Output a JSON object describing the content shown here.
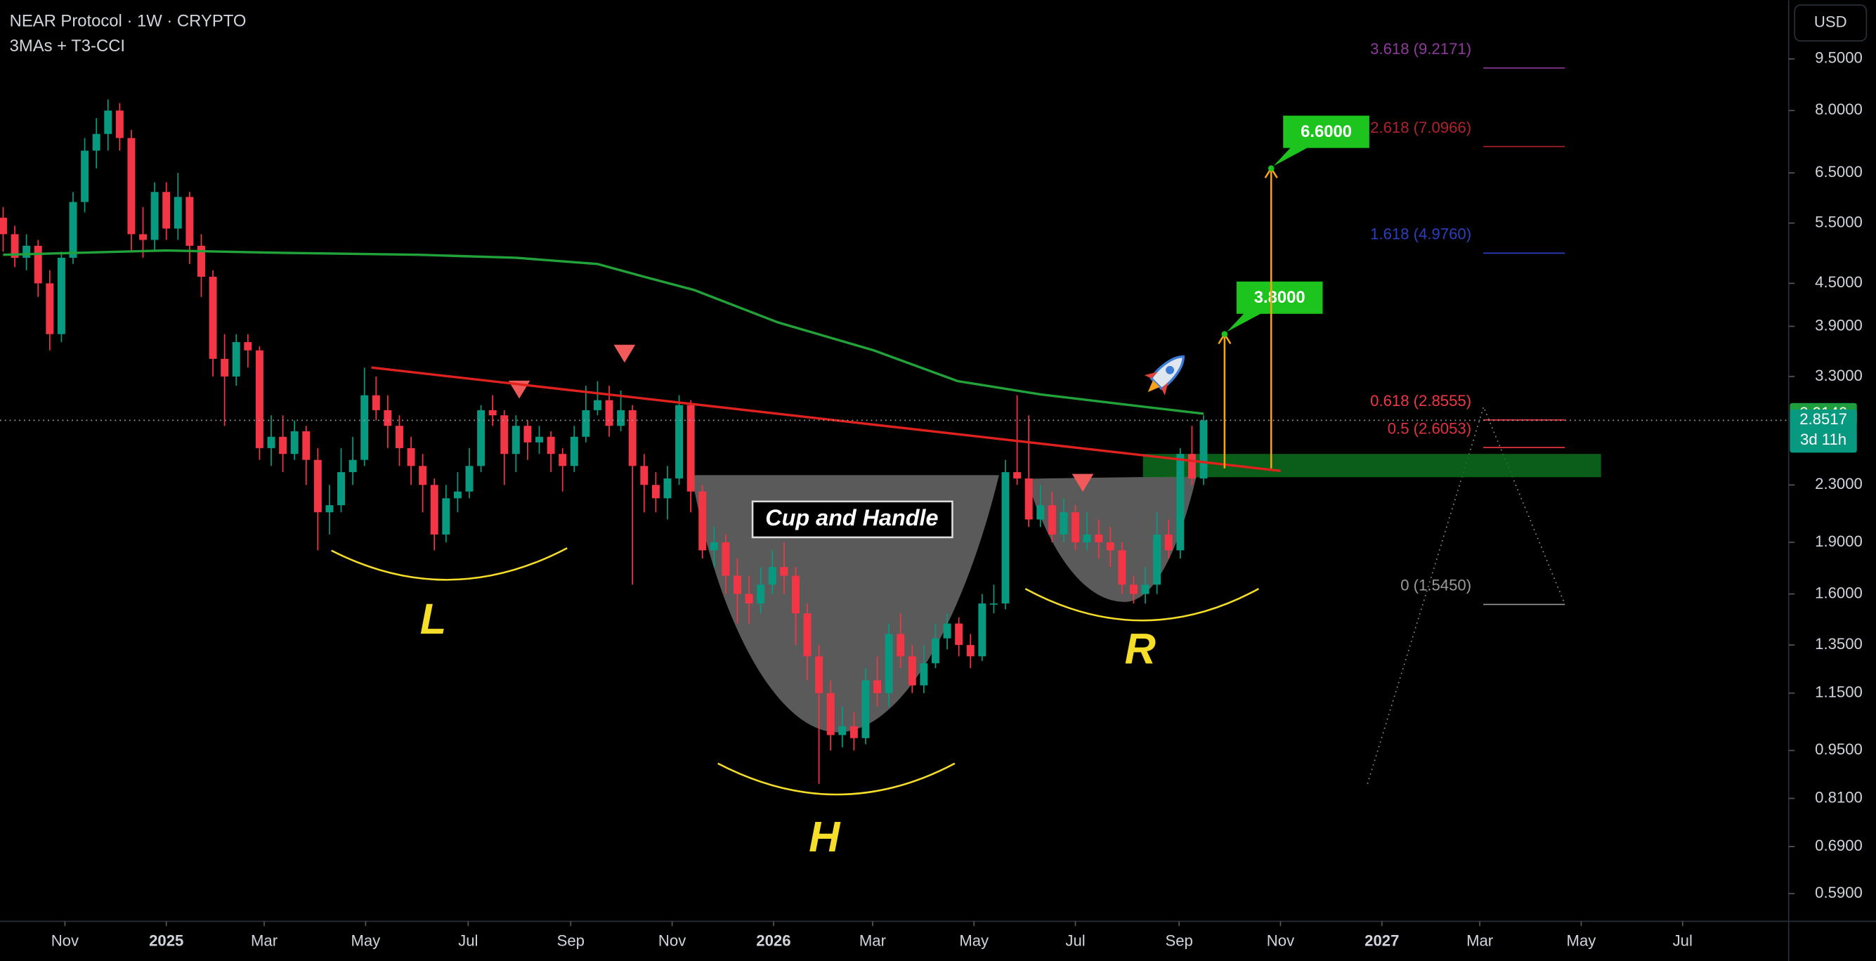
{
  "chart_data": {
    "type": "candlestick",
    "title": "NEAR Protocol · 1W · CRYPTO",
    "subtitle": "3MAs + T3-CCI",
    "currency": "USD",
    "countdown": "3d 11h",
    "log_scale": true,
    "grid": false,
    "up_color": "#089981",
    "down_color": "#f23645",
    "xlim": [
      -14.27,
      139.2
    ],
    "ylim": [
      0.538,
      11.55
    ],
    "xticks": [
      {
        "value": -8.7,
        "label": "Nov"
      },
      {
        "value": 0,
        "label": "2025"
      },
      {
        "value": 8.4,
        "label": "Mar"
      },
      {
        "value": 17.1,
        "label": "May"
      },
      {
        "value": 25.9,
        "label": "Jul"
      },
      {
        "value": 34.7,
        "label": "Sep"
      },
      {
        "value": 43.4,
        "label": "Nov"
      },
      {
        "value": 52.1,
        "label": "2026"
      },
      {
        "value": 60.6,
        "label": "Mar"
      },
      {
        "value": 69.3,
        "label": "May"
      },
      {
        "value": 78,
        "label": "Jul"
      },
      {
        "value": 86.9,
        "label": "Sep"
      },
      {
        "value": 95.6,
        "label": "Nov"
      },
      {
        "value": 104.3,
        "label": "2027"
      },
      {
        "value": 112.7,
        "label": "Mar"
      },
      {
        "value": 121.4,
        "label": "May"
      },
      {
        "value": 130.1,
        "label": "Jul"
      }
    ],
    "yticks": [
      {
        "value": 9.5,
        "label": "9.5000"
      },
      {
        "value": 8,
        "label": "8.0000"
      },
      {
        "value": 6.5,
        "label": "6.5000"
      },
      {
        "value": 5.5,
        "label": "5.5000"
      },
      {
        "value": 4.5,
        "label": "4.5000"
      },
      {
        "value": 3.9,
        "label": "3.9000"
      },
      {
        "value": 3.3,
        "label": "3.3000"
      },
      {
        "value": 2.3,
        "label": "2.3000"
      },
      {
        "value": 1.9,
        "label": "1.9000"
      },
      {
        "value": 1.6,
        "label": "1.6000"
      },
      {
        "value": 1.35,
        "label": "1.3500"
      },
      {
        "value": 1.15,
        "label": "1.1500"
      },
      {
        "value": 0.95,
        "label": "0.9500"
      },
      {
        "value": 0.81,
        "label": "0.8100"
      },
      {
        "value": 0.69,
        "label": "0.6900"
      },
      {
        "value": 0.59,
        "label": "0.5900"
      }
    ],
    "x": [
      -14,
      -13,
      -12,
      -11,
      -10,
      -9,
      -8,
      -7,
      -6,
      -5,
      -4,
      -3,
      -2,
      -1,
      0,
      1,
      2,
      3,
      4,
      5,
      6,
      7,
      8,
      9,
      10,
      11,
      12,
      13,
      14,
      15,
      16,
      17,
      18,
      19,
      20,
      21,
      22,
      23,
      24,
      25,
      26,
      27,
      28,
      29,
      30,
      31,
      32,
      33,
      34,
      35,
      36,
      37,
      38,
      39,
      40,
      41,
      42,
      43,
      44,
      45,
      46,
      47,
      48,
      49,
      50,
      51,
      52,
      53,
      54,
      55,
      56,
      57,
      58,
      59,
      60,
      61,
      62,
      63,
      64,
      65,
      66,
      67,
      68,
      69,
      70,
      71,
      72,
      73,
      74,
      75,
      76,
      77,
      78,
      79,
      80,
      81,
      82,
      83,
      84,
      85,
      86,
      87,
      88,
      89
    ],
    "open": [
      5.6,
      5.3,
      4.9,
      5.1,
      4.5,
      3.8,
      4.9,
      5.9,
      7.0,
      7.4,
      8.0,
      7.3,
      5.3,
      5.2,
      6.1,
      5.4,
      6.0,
      5.1,
      4.6,
      3.5,
      3.3,
      3.7,
      3.6,
      2.6,
      2.7,
      2.55,
      2.75,
      2.5,
      2.1,
      2.15,
      2.4,
      2.5,
      3.1,
      2.95,
      2.8,
      2.6,
      2.45,
      2.3,
      1.95,
      2.2,
      2.25,
      2.45,
      2.95,
      2.9,
      2.55,
      2.8,
      2.65,
      2.7,
      2.55,
      2.45,
      2.7,
      2.95,
      3.05,
      2.8,
      2.95,
      2.45,
      2.3,
      2.2,
      2.35,
      3.0,
      2.25,
      1.85,
      1.9,
      1.7,
      1.6,
      1.55,
      1.65,
      1.75,
      1.7,
      1.5,
      1.3,
      1.15,
      1.0,
      1.03,
      0.99,
      1.2,
      1.15,
      1.4,
      1.3,
      1.18,
      1.27,
      1.38,
      1.45,
      1.35,
      1.3,
      1.55,
      1.55,
      2.4,
      2.35,
      2.05,
      2.15,
      1.95,
      2.1,
      1.9,
      1.95,
      1.9,
      1.85,
      1.65,
      1.6,
      1.65,
      1.95,
      1.85,
      2.55,
      2.35
    ],
    "high": [
      5.8,
      5.45,
      5.3,
      5.2,
      4.7,
      5.0,
      6.1,
      7.3,
      7.8,
      8.3,
      8.2,
      7.5,
      5.8,
      6.3,
      6.3,
      6.5,
      6.1,
      5.3,
      4.7,
      3.8,
      3.8,
      3.8,
      3.65,
      2.9,
      2.9,
      2.85,
      2.8,
      2.6,
      2.3,
      2.6,
      2.7,
      3.4,
      3.3,
      3.1,
      2.9,
      2.7,
      2.55,
      2.35,
      2.3,
      2.4,
      2.6,
      3.0,
      3.1,
      2.95,
      2.9,
      2.85,
      2.8,
      2.75,
      2.6,
      2.8,
      3.2,
      3.25,
      3.2,
      3.15,
      3.0,
      2.55,
      2.4,
      2.45,
      3.1,
      3.05,
      2.3,
      2.0,
      1.95,
      1.8,
      1.7,
      1.75,
      1.85,
      1.9,
      1.75,
      1.55,
      1.35,
      1.2,
      1.1,
      1.08,
      1.25,
      1.3,
      1.45,
      1.5,
      1.35,
      1.35,
      1.45,
      1.5,
      1.48,
      1.4,
      1.6,
      1.65,
      2.5,
      3.1,
      2.9,
      2.3,
      2.25,
      2.2,
      2.15,
      2.1,
      2.05,
      2.0,
      1.9,
      1.7,
      1.75,
      2.1,
      2.05,
      2.6,
      2.8,
      2.9
    ],
    "low": [
      5.0,
      4.75,
      4.7,
      4.3,
      3.6,
      3.7,
      4.8,
      5.7,
      6.6,
      7.0,
      7.0,
      5.0,
      4.9,
      5.0,
      5.2,
      5.2,
      4.8,
      4.3,
      3.3,
      2.8,
      3.2,
      3.4,
      2.5,
      2.45,
      2.4,
      2.5,
      2.3,
      1.85,
      1.95,
      2.1,
      2.3,
      2.45,
      2.85,
      2.6,
      2.45,
      2.3,
      2.1,
      1.85,
      1.9,
      2.1,
      2.2,
      2.4,
      2.8,
      2.3,
      2.4,
      2.5,
      2.55,
      2.4,
      2.25,
      2.4,
      2.65,
      2.9,
      2.7,
      2.75,
      1.65,
      2.1,
      2.1,
      2.05,
      2.3,
      2.1,
      1.8,
      1.75,
      1.6,
      1.45,
      1.45,
      1.5,
      1.6,
      1.6,
      1.35,
      1.2,
      0.85,
      0.95,
      0.96,
      0.95,
      0.97,
      1.1,
      1.1,
      1.25,
      1.15,
      1.15,
      1.25,
      1.33,
      1.3,
      1.25,
      1.28,
      1.5,
      1.52,
      2.3,
      2.0,
      2.0,
      1.9,
      1.9,
      1.85,
      1.85,
      1.8,
      1.75,
      1.6,
      1.55,
      1.55,
      1.6,
      1.8,
      1.8,
      2.3,
      2.3
    ],
    "close": [
      5.3,
      4.9,
      5.1,
      4.5,
      3.8,
      4.9,
      5.9,
      7.0,
      7.4,
      8.0,
      7.3,
      5.3,
      5.2,
      6.1,
      5.4,
      6.0,
      5.1,
      4.6,
      3.5,
      3.3,
      3.7,
      3.6,
      2.6,
      2.7,
      2.55,
      2.75,
      2.5,
      2.1,
      2.15,
      2.4,
      2.5,
      3.1,
      2.95,
      2.8,
      2.6,
      2.45,
      2.3,
      1.95,
      2.2,
      2.25,
      2.45,
      2.95,
      2.9,
      2.55,
      2.8,
      2.65,
      2.7,
      2.55,
      2.45,
      2.7,
      2.95,
      3.05,
      2.8,
      2.95,
      2.45,
      2.3,
      2.2,
      2.35,
      3.0,
      2.25,
      1.85,
      1.9,
      1.7,
      1.6,
      1.55,
      1.65,
      1.75,
      1.7,
      1.5,
      1.3,
      1.15,
      1.0,
      1.03,
      0.99,
      1.2,
      1.15,
      1.4,
      1.3,
      1.18,
      1.27,
      1.38,
      1.45,
      1.35,
      1.3,
      1.55,
      1.55,
      2.4,
      2.35,
      2.05,
      2.15,
      1.95,
      2.1,
      1.9,
      1.95,
      1.9,
      1.85,
      1.65,
      1.6,
      1.65,
      1.95,
      1.85,
      2.55,
      2.35,
      2.8517
    ],
    "ma": {
      "color": "#22a33a",
      "x": [
        -14,
        0,
        10,
        21.7,
        30,
        37,
        41,
        45.3,
        52.5,
        60.7,
        67.9,
        75,
        82,
        89
      ],
      "values": [
        4.95,
        5.02,
        4.98,
        4.95,
        4.9,
        4.8,
        4.6,
        4.4,
        3.95,
        3.6,
        3.25,
        3.11,
        3.01,
        2.9146
      ]
    },
    "trendline": {
      "color": "#e0221e",
      "x": [
        17.6,
        95.6
      ],
      "values": [
        3.4,
        2.41
      ]
    },
    "zone": {
      "color": "#0c6e1e",
      "x": [
        83.8,
        123.1
      ],
      "values": [
        2.36,
        2.55
      ]
    },
    "target_base": 2.43,
    "targets": [
      {
        "label": "3.8000",
        "value": 3.8,
        "x": 90.8
      },
      {
        "label": "6.6000",
        "value": 6.6,
        "x": 94.8
      }
    ],
    "fib_x": [
      113,
      120
    ],
    "fib": [
      {
        "text": "3.618 (9.2171)",
        "value": 9.2171,
        "color": "#8e3a9c"
      },
      {
        "text": "2.618 (7.0966)",
        "value": 7.0966,
        "color": "#b0222e"
      },
      {
        "text": "1.618 (4.9760)",
        "value": 4.976,
        "color": "#2c3fbf"
      },
      {
        "text": "0.618 (2.8555)",
        "value": 2.8555,
        "color": "#f23645"
      },
      {
        "text": "0.5 (2.6053)",
        "value": 2.6053,
        "color": "#e0333f"
      },
      {
        "text": "0 (1.5450)",
        "value": 1.545,
        "color": "#9a9a9a"
      }
    ],
    "annotations": {
      "cup": "Cup and Handle",
      "left": "L",
      "head": "H",
      "right": "R"
    }
  }
}
